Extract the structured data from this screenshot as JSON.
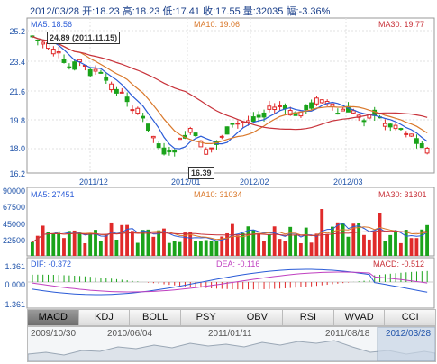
{
  "header": {
    "date": "2012/03/28",
    "open_label": "开:",
    "open": "18.23",
    "high_label": "高:",
    "high": "18.23",
    "low_label": "低:",
    "low": "17.41",
    "close_label": "收:",
    "close": "17.55",
    "volume_label": "量:",
    "volume": "32035",
    "change_label": "幅:",
    "change": "-3.36%"
  },
  "price_panel": {
    "ma5": "MA5: 18.56",
    "ma10": "MA10: 19.06",
    "ma30": "MA30: 19.77",
    "y_ticks": [
      "25.2",
      "23.4",
      "21.6",
      "19.8",
      "18.0",
      "16.2"
    ],
    "x_ticks": [
      "2011/12",
      "2012/01",
      "2012/02",
      "2012/03"
    ],
    "high_annotation": "24.89 (2011.11.15)",
    "low_annotation": "16.39"
  },
  "volume_panel": {
    "ma5": "MA5: 27451",
    "ma10": "MA10: 31034",
    "ma30": "MA30: 31301",
    "y_ticks": [
      "90000",
      "67500",
      "45000",
      "22500"
    ]
  },
  "macd_panel": {
    "dif": "DIF: -0.372",
    "dea": "DEA: -0.116",
    "macd": "MACD: -0.512",
    "y_ticks": [
      "1.361",
      "0.000",
      "-1.361"
    ]
  },
  "tabs": [
    "MACD",
    "KDJ",
    "BOLL",
    "PSY",
    "OBV",
    "RSI",
    "WVAD",
    "CCI"
  ],
  "navigator": {
    "dates": [
      "2009/10/30",
      "2010/06/04",
      "2011/01/11",
      "2011/08/18",
      "2012/03/28"
    ]
  },
  "colors": {
    "up": "#e02a2a",
    "down": "#1aa31a",
    "ma5": "#2a5bd7",
    "ma10": "#d9782b",
    "ma30": "#c8323a"
  }
}
